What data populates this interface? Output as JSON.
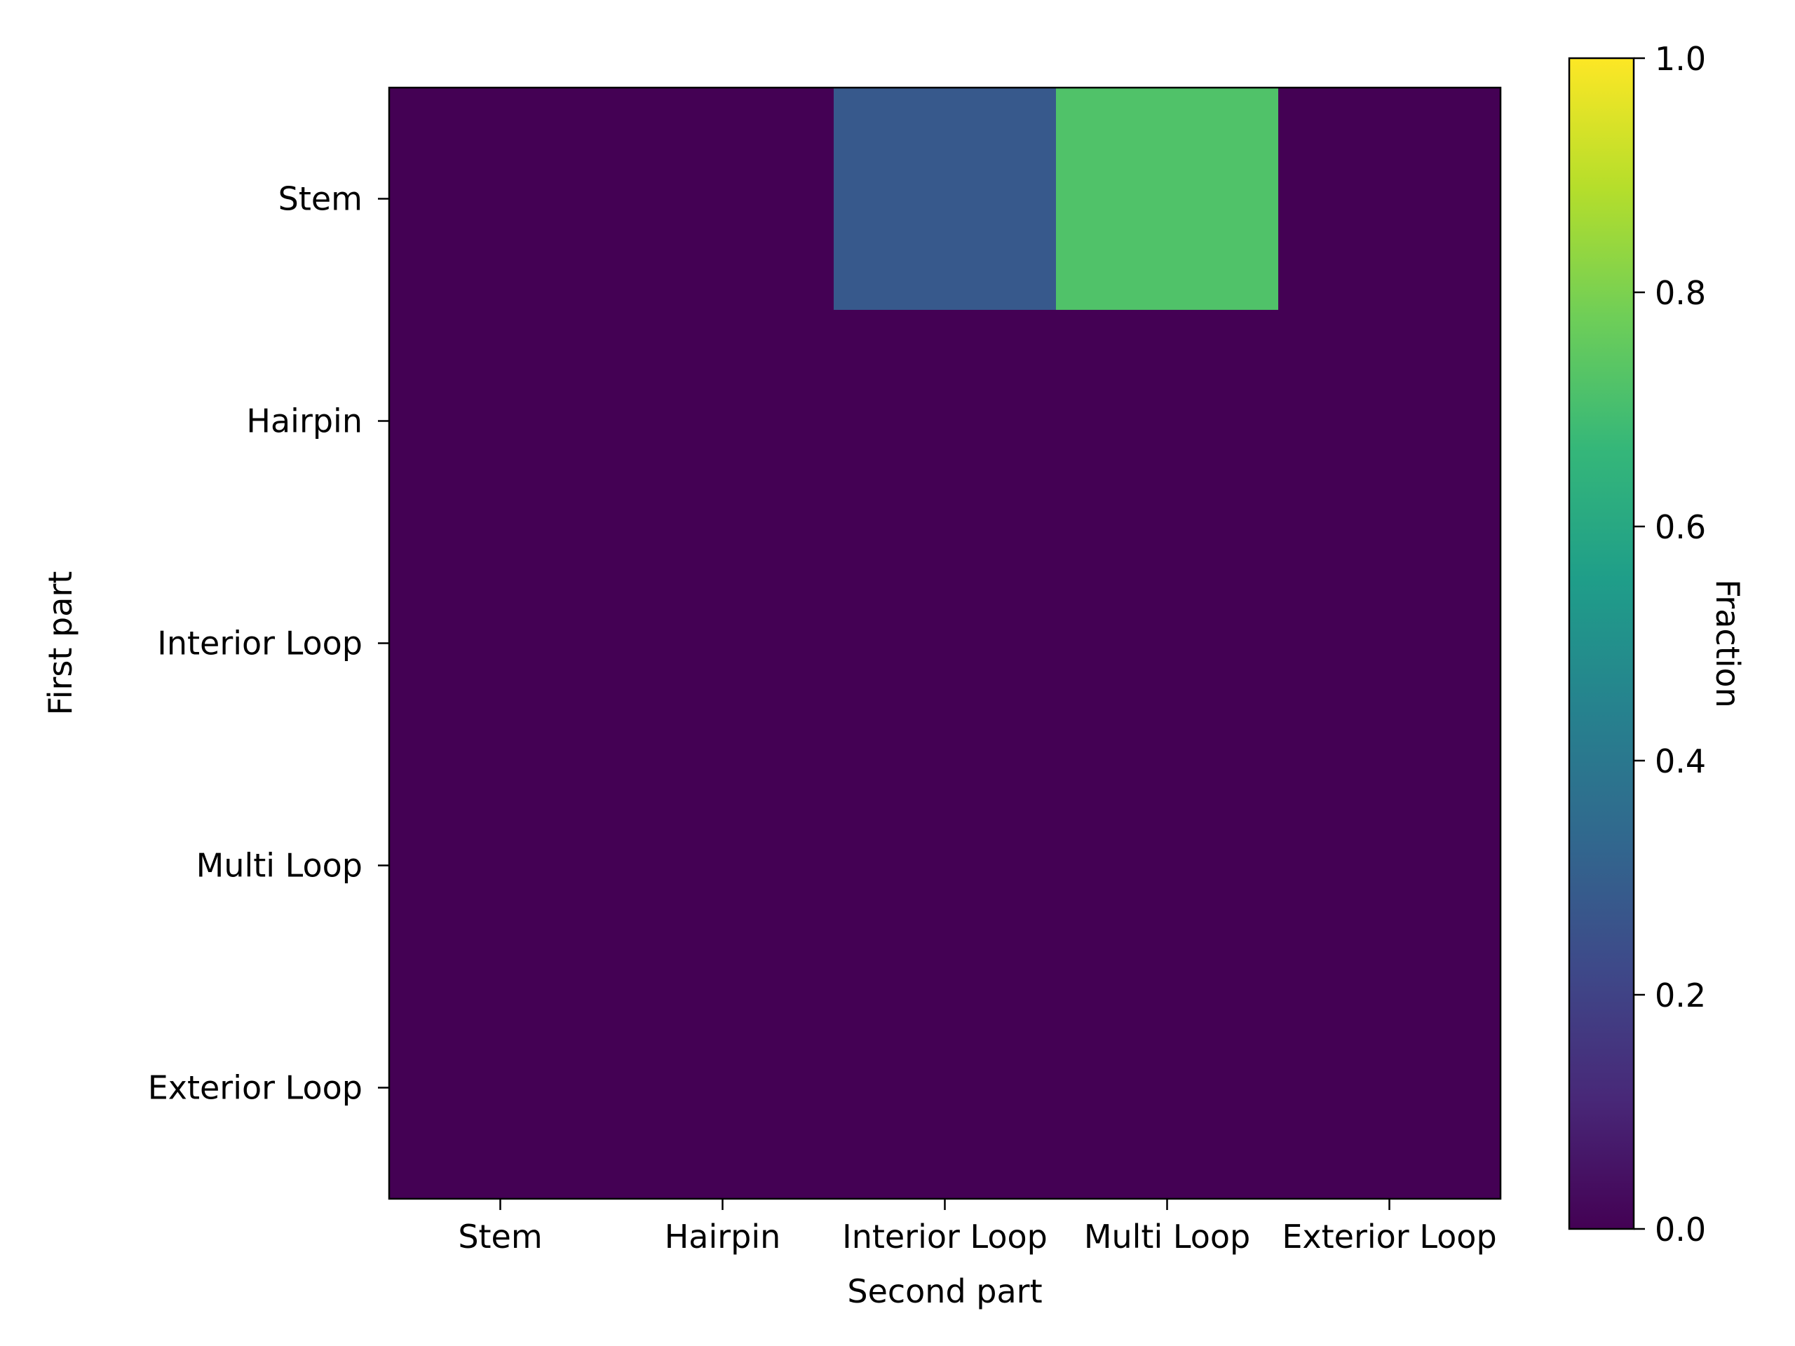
{
  "chart_data": {
    "type": "heatmap",
    "x_categories": [
      "Stem",
      "Hairpin",
      "Interior Loop",
      "Multi Loop",
      "Exterior Loop"
    ],
    "y_categories": [
      "Stem",
      "Hairpin",
      "Interior Loop",
      "Multi Loop",
      "Exterior Loop"
    ],
    "values": [
      [
        0.0,
        0.0,
        0.28,
        0.72,
        0.0
      ],
      [
        0.0,
        0.0,
        0.0,
        0.0,
        0.0
      ],
      [
        0.0,
        0.0,
        0.0,
        0.0,
        0.0
      ],
      [
        0.0,
        0.0,
        0.0,
        0.0,
        0.0
      ],
      [
        0.0,
        0.0,
        0.0,
        0.0,
        0.0
      ]
    ],
    "xlabel": "Second part",
    "ylabel": "First part",
    "colorbar": {
      "label": "Fraction",
      "range": [
        0.0,
        1.0
      ],
      "ticks": [
        0.0,
        0.2,
        0.4,
        0.6,
        0.8,
        1.0
      ],
      "tick_labels": [
        "0.0",
        "0.2",
        "0.4",
        "0.6",
        "0.8",
        "1.0"
      ],
      "colormap": "viridis",
      "placement": "right"
    },
    "grid": false,
    "colors": {
      "viridis": [
        "#440154",
        "#482878",
        "#3e4989",
        "#31688e",
        "#26828e",
        "#1f9e89",
        "#35b779",
        "#6ece58",
        "#b5de2b",
        "#fde725"
      ]
    }
  }
}
